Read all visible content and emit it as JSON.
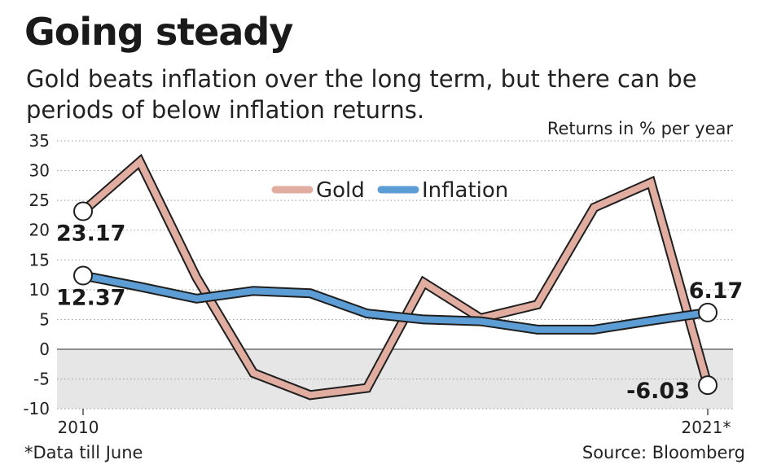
{
  "title": "Going steady",
  "subtitle": "Gold beats inflation over the long term, but there can be periods of below inflation returns.",
  "units_label": "Returns in % per year",
  "footnote": "*Data till June",
  "source": "Source: Bloomberg",
  "chart_data": {
    "type": "line",
    "x": [
      2010,
      2011,
      2012,
      2013,
      2014,
      2015,
      2016,
      2017,
      2018,
      2019,
      2020,
      2021
    ],
    "x_tick_labels": [
      "2010",
      "2021*"
    ],
    "y_ticks": [
      35,
      30,
      25,
      20,
      15,
      10,
      5,
      0,
      -5,
      -10
    ],
    "ylim": [
      -10,
      35
    ],
    "grid": "dotted horizontal",
    "negative_region_shaded": true,
    "legend_position": "top-center",
    "series": [
      {
        "name": "Gold",
        "color": "#e0ada0",
        "values": [
          23.17,
          31.5,
          12.0,
          -4.0,
          -7.7,
          -6.5,
          11.2,
          5.2,
          7.5,
          23.8,
          28.0,
          -6.03
        ]
      },
      {
        "name": "Inflation",
        "color": "#5c9dd5",
        "values": [
          12.37,
          10.5,
          8.5,
          9.8,
          9.4,
          6.0,
          5.0,
          4.7,
          3.3,
          3.3,
          4.8,
          6.17
        ]
      }
    ],
    "annotations": [
      {
        "text": "23.17",
        "series": "Gold",
        "x": 2010
      },
      {
        "text": "12.37",
        "series": "Inflation",
        "x": 2010
      },
      {
        "text": "6.17",
        "series": "Inflation",
        "x": 2021
      },
      {
        "text": "-6.03",
        "series": "Gold",
        "x": 2021
      }
    ]
  }
}
